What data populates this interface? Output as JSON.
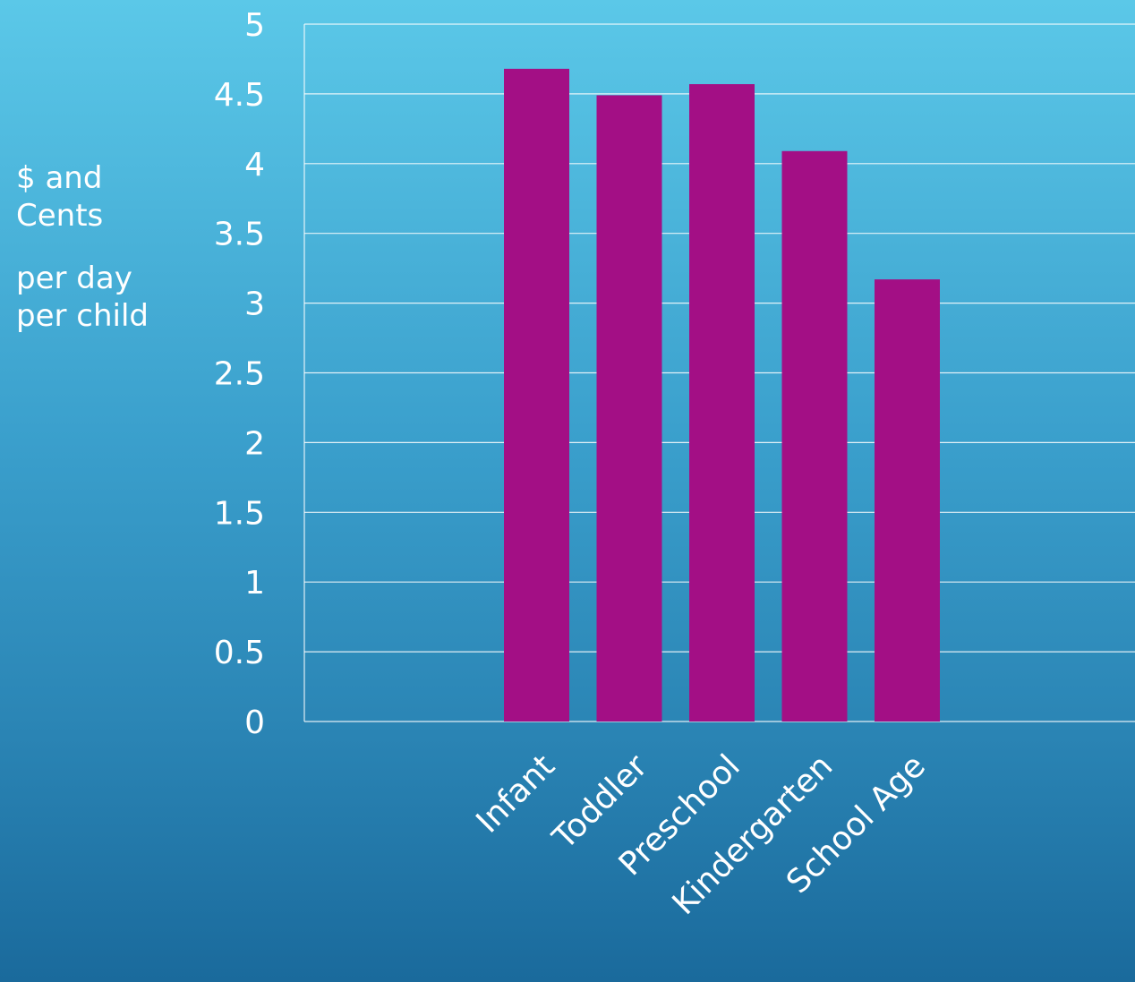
{
  "chart_data": {
    "type": "bar",
    "categories": [
      "Infant",
      "Toddler",
      "Preschool",
      "Kindergarten",
      "School Age"
    ],
    "values": [
      4.68,
      4.49,
      4.57,
      4.09,
      3.17
    ],
    "ylabel_lines": [
      "$ and Cents",
      "per day per child"
    ],
    "ylim": [
      0,
      5
    ],
    "yticks": [
      "0",
      "0.5",
      "1",
      "1.5",
      "2",
      "2.5",
      "3",
      "3.5",
      "4",
      "4.5",
      "5"
    ],
    "grid": true,
    "legend": "none",
    "bar_color": "#a30f85"
  }
}
